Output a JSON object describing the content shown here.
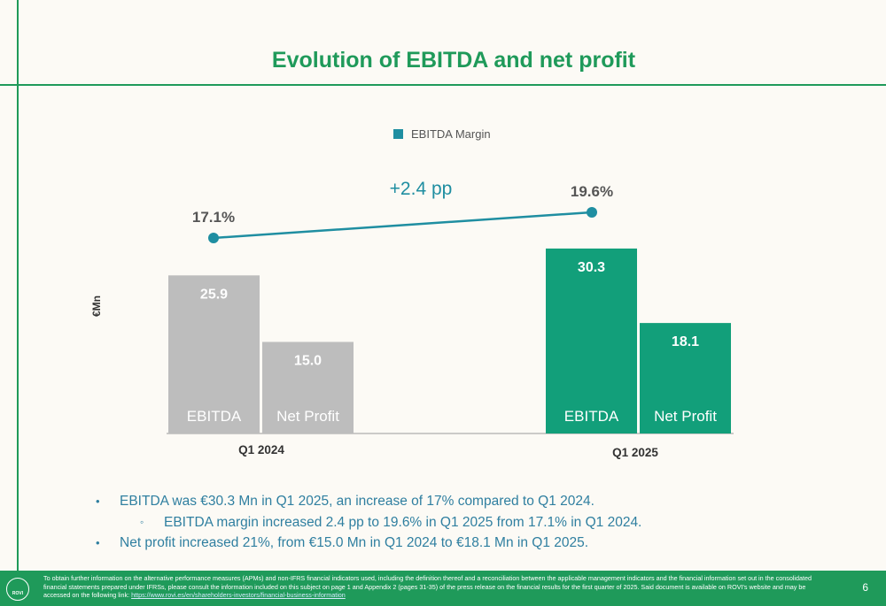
{
  "page": {
    "title": "Evolution of EBITDA and net profit",
    "page_number": "6"
  },
  "chart_data": {
    "type": "bar",
    "ylabel": "€Mn",
    "categories": [
      "Q1 2024",
      "Q1 2025"
    ],
    "series": [
      {
        "name": "EBITDA",
        "values": [
          25.9,
          30.3
        ]
      },
      {
        "name": "Net Profit",
        "values": [
          15.0,
          18.1
        ]
      }
    ],
    "value_labels": {
      "EBITDA": [
        "25.9",
        "30.3"
      ],
      "Net Profit": [
        "15.0",
        "18.1"
      ]
    },
    "overlay_line": {
      "name": "EBITDA Margin",
      "values": [
        17.1,
        19.6
      ],
      "labels": [
        "17.1%",
        "19.6%"
      ],
      "change_label": "+2.4 pp",
      "color": "#1f8ea1"
    },
    "legend_position": "top-center",
    "colors": {
      "q1_2024_bars": "#bdbdbd",
      "q1_2025_bars": "#129f7a",
      "margin_line": "#1f8ea1"
    },
    "grid": false
  },
  "bullets": [
    {
      "text": "EBITDA was €30.3 Mn in Q1 2025, an increase of 17% compared to Q1 2024.",
      "marker": "•",
      "level": 1
    },
    {
      "text": "EBITDA margin increased 2.4 pp to 19.6% in Q1 2025 from 17.1% in Q1 2024.",
      "marker": "◦",
      "level": 2
    },
    {
      "text": "Net profit increased 21%, from €15.0 Mn in Q1 2024 to €18.1 Mn in Q1 2025.",
      "marker": "•",
      "level": 1
    }
  ],
  "footer": {
    "logo_text": "ROVI",
    "text": "To obtain further information on the alternative performance measures (APMs) and non-IFRS financial indicators used, including the definition thereof and a reconciliation between the applicable management indicators and the financial information set out in the consolidated financial statements prepared under IFRSs, please consult the information included on this subject on page 1 and Appendix 2 (pages 31-35) of the press release on the financial results for the first quarter of 2025. Said document is available on ROVI's website and may be accessed on the following link: ",
    "link": "https://www.rovi.es/en/shareholders-investors/financial-business-information"
  }
}
